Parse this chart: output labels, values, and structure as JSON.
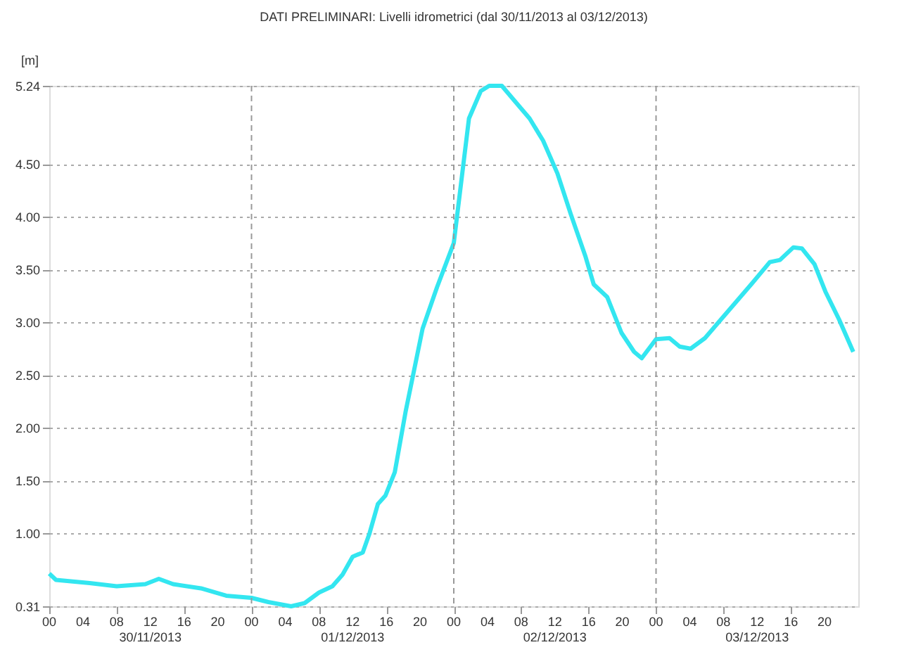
{
  "chart_data": {
    "type": "line",
    "title": "DATI PRELIMINARI: Livelli idrometrici (dal 30/11/2013 al 03/12/2013)",
    "ylabel": "[m]",
    "x": [
      "2013-11-30T00:00",
      "2013-11-30T00:48",
      "2013-11-30T04:48",
      "2013-11-30T08:00",
      "2013-11-30T11:24",
      "2013-11-30T13:00",
      "2013-11-30T14:42",
      "2013-11-30T18:00",
      "2013-11-30T21:00",
      "2013-12-01T00:00",
      "2013-12-01T02:00",
      "2013-12-01T04:42",
      "2013-12-01T06:18",
      "2013-12-01T08:00",
      "2013-12-01T09:36",
      "2013-12-01T10:48",
      "2013-12-01T12:00",
      "2013-12-01T13:12",
      "2013-12-01T14:00",
      "2013-12-01T15:00",
      "2013-12-01T15:54",
      "2013-12-01T17:00",
      "2013-12-01T18:18",
      "2013-12-01T20:18",
      "2013-12-01T22:00",
      "2013-12-02T00:00",
      "2013-12-02T01:48",
      "2013-12-02T03:12",
      "2013-12-02T04:12",
      "2013-12-02T05:42",
      "2013-12-02T07:24",
      "2013-12-02T09:00",
      "2013-12-02T10:36",
      "2013-12-02T12:18",
      "2013-12-02T13:54",
      "2013-12-02T15:36",
      "2013-12-02T16:36",
      "2013-12-02T18:12",
      "2013-12-02T19:54",
      "2013-12-02T21:24",
      "2013-12-02T22:18",
      "2013-12-03T00:00",
      "2013-12-03T01:36",
      "2013-12-03T02:48",
      "2013-12-03T04:06",
      "2013-12-03T05:48",
      "2013-12-03T08:36",
      "2013-12-03T11:24",
      "2013-12-03T13:30",
      "2013-12-03T14:42",
      "2013-12-03T16:18",
      "2013-12-03T17:18",
      "2013-12-03T18:48",
      "2013-12-03T20:06",
      "2013-12-03T21:42",
      "2013-12-03T23:24"
    ],
    "series": [
      {
        "color": "#33e6f0",
        "values": [
          0.62,
          0.56,
          0.53,
          0.5,
          0.52,
          0.57,
          0.52,
          0.48,
          0.41,
          0.39,
          0.35,
          0.31,
          0.34,
          0.44,
          0.5,
          0.61,
          0.78,
          0.82,
          1.0,
          1.28,
          1.36,
          1.58,
          2.16,
          2.94,
          3.33,
          3.75,
          4.93,
          5.19,
          5.24,
          5.24,
          5.08,
          4.93,
          4.72,
          4.41,
          4.02,
          3.63,
          3.36,
          3.24,
          2.9,
          2.72,
          2.66,
          2.84,
          2.85,
          2.77,
          2.75,
          2.85,
          3.11,
          3.37,
          3.57,
          3.59,
          3.71,
          3.7,
          3.55,
          3.29,
          3.03,
          2.72
        ]
      }
    ],
    "xlim": [
      "2013-11-30T00:00",
      "2013-12-04T00:00"
    ],
    "ylim": [
      0.31,
      5.24
    ],
    "xticks": [
      {
        "value": "2013-11-30T00:00",
        "label": "00"
      },
      {
        "value": "2013-11-30T04:00",
        "label": "04"
      },
      {
        "value": "2013-11-30T08:00",
        "label": "08"
      },
      {
        "value": "2013-11-30T12:00",
        "label": "12\n30/11/2013"
      },
      {
        "value": "2013-11-30T16:00",
        "label": "16"
      },
      {
        "value": "2013-11-30T20:00",
        "label": "20"
      },
      {
        "value": "2013-12-01T00:00",
        "label": "00"
      },
      {
        "value": "2013-12-01T04:00",
        "label": "04"
      },
      {
        "value": "2013-12-01T08:00",
        "label": "08"
      },
      {
        "value": "2013-12-01T12:00",
        "label": "12\n01/12/2013"
      },
      {
        "value": "2013-12-01T16:00",
        "label": "16"
      },
      {
        "value": "2013-12-01T20:00",
        "label": "20"
      },
      {
        "value": "2013-12-02T00:00",
        "label": "00"
      },
      {
        "value": "2013-12-02T04:00",
        "label": "04"
      },
      {
        "value": "2013-12-02T08:00",
        "label": "08"
      },
      {
        "value": "2013-12-02T12:00",
        "label": "12\n02/12/2013"
      },
      {
        "value": "2013-12-02T16:00",
        "label": "16"
      },
      {
        "value": "2013-12-02T20:00",
        "label": "20"
      },
      {
        "value": "2013-12-03T00:00",
        "label": "00"
      },
      {
        "value": "2013-12-03T04:00",
        "label": "04"
      },
      {
        "value": "2013-12-03T08:00",
        "label": "08"
      },
      {
        "value": "2013-12-03T12:00",
        "label": "12\n03/12/2013"
      },
      {
        "value": "2013-12-03T16:00",
        "label": "16"
      },
      {
        "value": "2013-12-03T20:00",
        "label": "20"
      }
    ],
    "yticks": [
      0.31,
      {
        "value": 1,
        "label": "1.00"
      },
      {
        "value": 1.5,
        "label": "1.50"
      },
      {
        "value": 2,
        "label": "2.00"
      },
      {
        "value": 2.5,
        "label": "2.50"
      },
      {
        "value": 3,
        "label": "3.00"
      },
      {
        "value": 3.5,
        "label": "3.50"
      },
      {
        "value": 4,
        "label": "4.00"
      },
      {
        "value": 4.5,
        "label": "4.50"
      },
      5.24
    ],
    "ref_lines": [
      {
        "axis": "x",
        "value": "2013-12-01T00:00",
        "line_style": "dashed",
        "color": "#999999"
      },
      {
        "axis": "x",
        "value": "2013-12-02T00:00",
        "line_style": "dashed",
        "color": "#999999"
      },
      {
        "axis": "x",
        "value": "2013-12-03T00:00",
        "line_style": "dashed",
        "color": "#999999"
      }
    ],
    "grid": "y",
    "marker": "none",
    "line_style": "solid"
  }
}
